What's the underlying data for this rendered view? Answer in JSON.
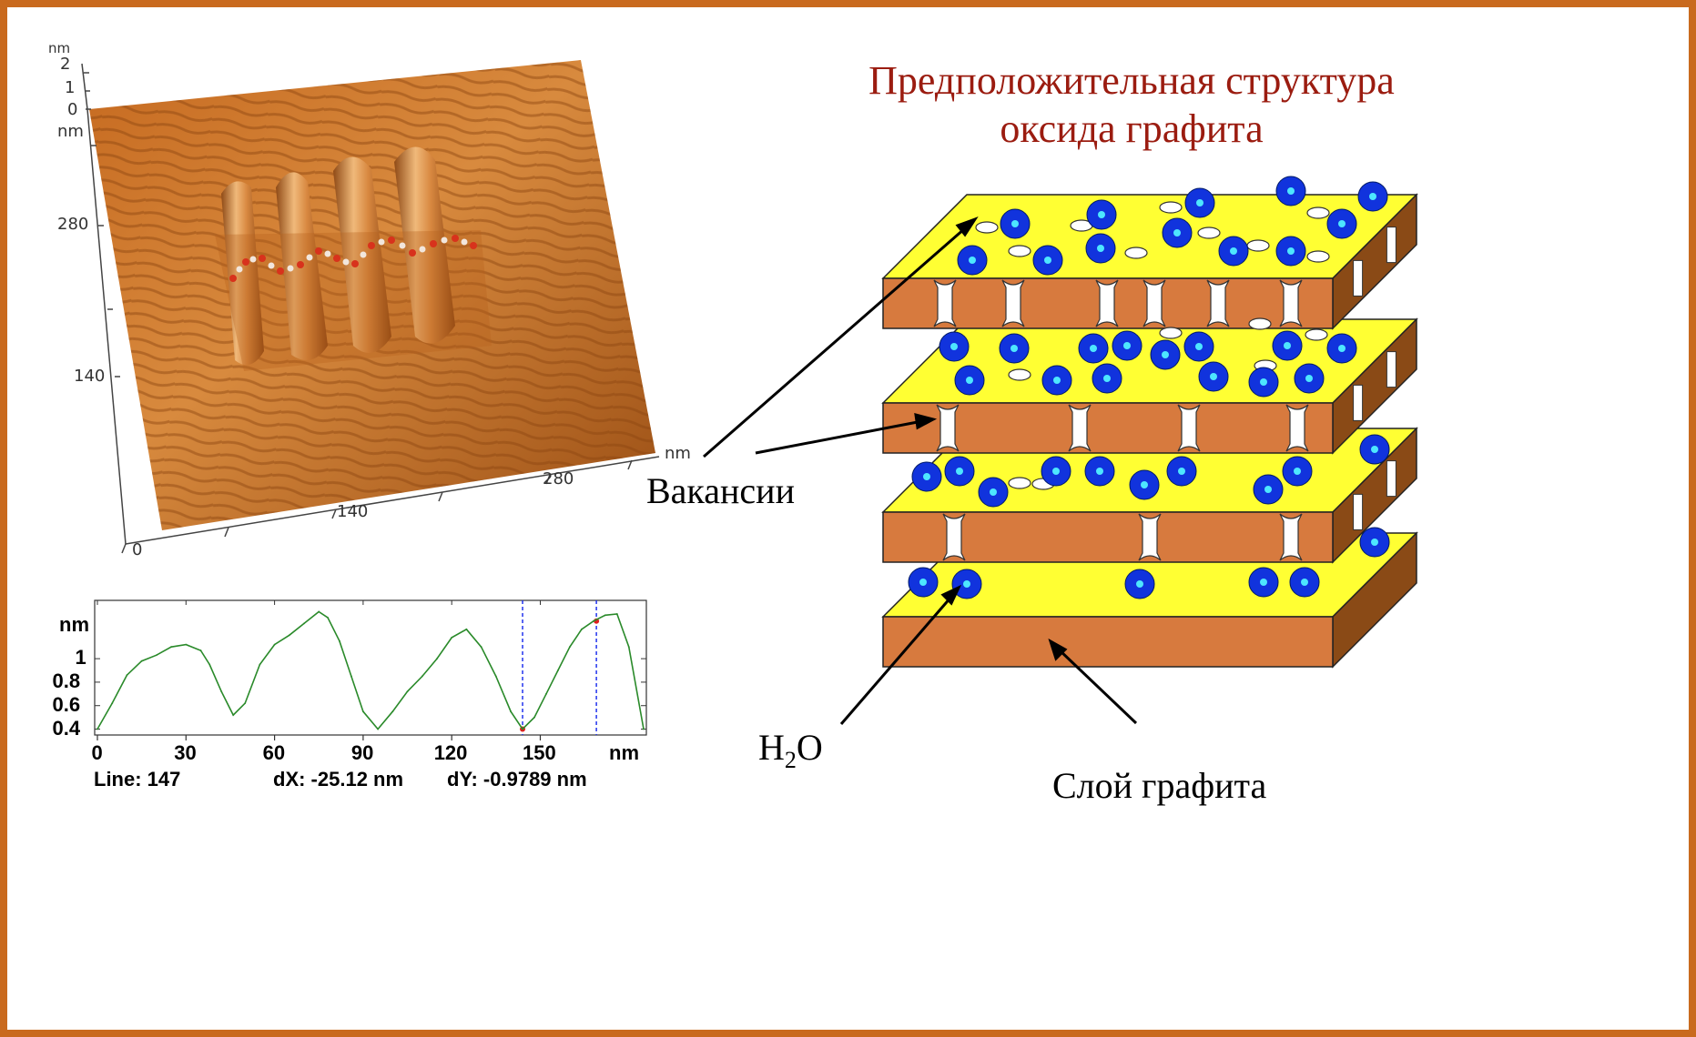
{
  "title": {
    "line1": "Предположительная структура",
    "line2": "оксида графита"
  },
  "labels": {
    "vacancies": "Вакансии",
    "water_base": "H",
    "water_sub": "2",
    "water_tail": "O",
    "graphite_layer": "Слой графита"
  },
  "afm_3d": {
    "z_unit": "nm",
    "z_ticks": [
      "2",
      "1",
      "0"
    ],
    "y_unit": "nm",
    "y_ticks": [
      "280",
      "140"
    ],
    "x_unit": "nm",
    "x_ticks": [
      "280",
      "140",
      "0"
    ]
  },
  "colors": {
    "frame": "#c96a1e",
    "title": "#9b1c10",
    "layer_top": "#ffff33",
    "layer_front": "#d77a3e",
    "layer_side": "#8a4a16",
    "molecule": "#1133dd",
    "profile_line": "#2a8a2a"
  },
  "chart_data": {
    "type": "line",
    "xlabel": "nm",
    "ylabel": "nm",
    "x_ticks": [
      0,
      30,
      60,
      90,
      120,
      150
    ],
    "y_ticks": [
      0.4,
      0.6,
      0.8,
      1
    ],
    "xlim": [
      0,
      185
    ],
    "ylim": [
      0.35,
      1.45
    ],
    "series": [
      {
        "x": [
          0,
          5,
          10,
          15,
          20,
          25,
          30,
          35,
          38,
          42,
          46,
          50,
          55,
          60,
          65,
          70,
          75,
          78,
          82,
          86,
          90,
          95,
          100,
          105,
          110,
          115,
          120,
          125,
          130,
          135,
          140,
          144,
          148,
          152,
          156,
          160,
          164,
          168,
          172,
          176,
          180,
          185
        ],
        "y": [
          0.4,
          0.62,
          0.86,
          0.98,
          1.03,
          1.1,
          1.12,
          1.07,
          0.95,
          0.72,
          0.52,
          0.62,
          0.95,
          1.12,
          1.2,
          1.3,
          1.4,
          1.35,
          1.15,
          0.85,
          0.55,
          0.4,
          0.55,
          0.72,
          0.85,
          1.0,
          1.18,
          1.25,
          1.1,
          0.85,
          0.55,
          0.4,
          0.5,
          0.7,
          0.9,
          1.1,
          1.25,
          1.32,
          1.37,
          1.38,
          1.1,
          0.4
        ]
      }
    ],
    "cursors": [
      144,
      169
    ],
    "status": {
      "line": "Line: 147",
      "dx": "dX: -25.12 nm",
      "dy": "dY: -0.9789 nm"
    }
  }
}
